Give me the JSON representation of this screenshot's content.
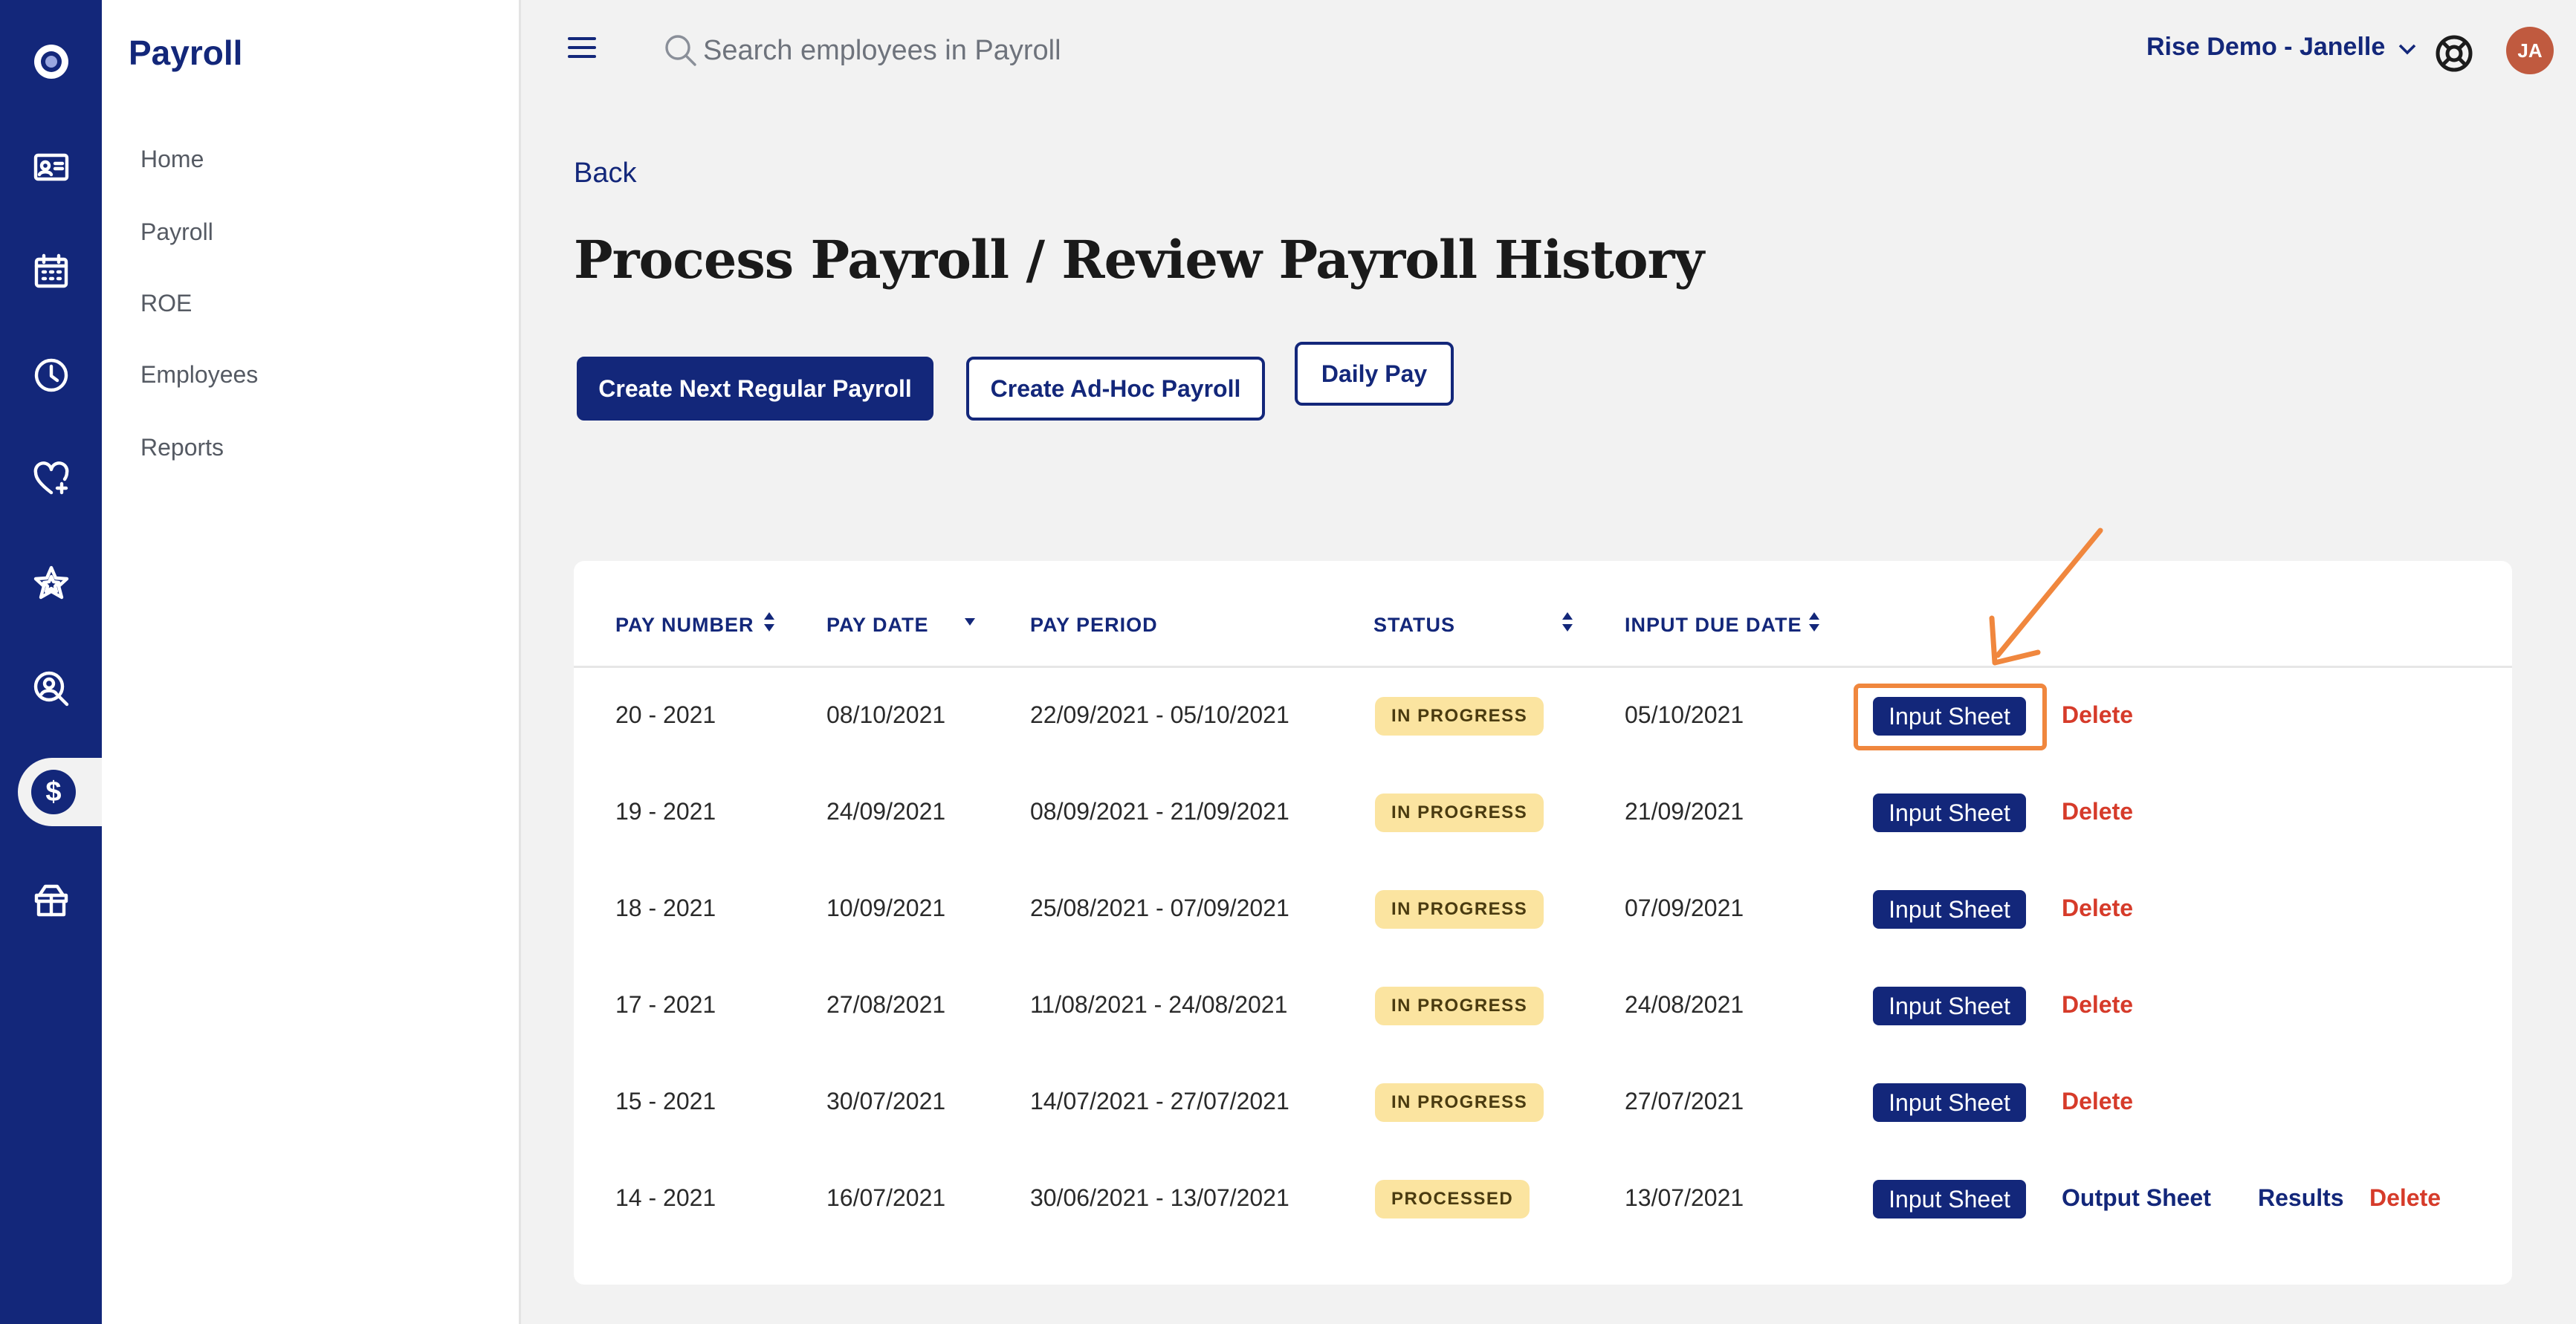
{
  "app": {
    "section_title": "Payroll",
    "colors": {
      "brand": "#13277a",
      "danger": "#d63b2a",
      "badge_bg": "#fbe4a0",
      "highlight": "#f0873e",
      "avatar_bg": "#c05a3f"
    }
  },
  "rail": {
    "icons": [
      "logo-icon",
      "id-card-icon",
      "calendar-icon",
      "clock-icon",
      "heart-plus-icon",
      "star-icon",
      "person-search-icon",
      "dollar-icon",
      "gift-box-icon"
    ],
    "active": "dollar-icon"
  },
  "sidebar": {
    "title": "Payroll",
    "items": [
      {
        "label": "Home"
      },
      {
        "label": "Payroll"
      },
      {
        "label": "ROE"
      },
      {
        "label": "Employees"
      },
      {
        "label": "Reports"
      }
    ]
  },
  "topbar": {
    "search_placeholder": "Search employees in Payroll",
    "account_label": "Rise Demo - Janelle",
    "avatar_initials": "JA"
  },
  "main": {
    "back_label": "Back",
    "title": "Process Payroll / Review Payroll History",
    "buttons": {
      "create_regular": "Create Next Regular Payroll",
      "create_adhoc": "Create Ad-Hoc Payroll",
      "daily_pay": "Daily Pay"
    }
  },
  "table": {
    "columns": {
      "pay_number": "PAY NUMBER",
      "pay_date": "PAY DATE",
      "pay_period": "PAY PERIOD",
      "status": "STATUS",
      "input_due_date": "INPUT DUE DATE"
    },
    "actions": {
      "input_sheet": "Input Sheet",
      "output_sheet": "Output Sheet",
      "results": "Results",
      "delete": "Delete"
    },
    "rows": [
      {
        "pay_number": "20 - 2021",
        "pay_date": "08/10/2021",
        "pay_period": "22/09/2021 - 05/10/2021",
        "status": "IN PROGRESS",
        "input_due_date": "05/10/2021"
      },
      {
        "pay_number": "19 - 2021",
        "pay_date": "24/09/2021",
        "pay_period": "08/09/2021 - 21/09/2021",
        "status": "IN PROGRESS",
        "input_due_date": "21/09/2021"
      },
      {
        "pay_number": "18 - 2021",
        "pay_date": "10/09/2021",
        "pay_period": "25/08/2021 - 07/09/2021",
        "status": "IN PROGRESS",
        "input_due_date": "07/09/2021"
      },
      {
        "pay_number": "17 - 2021",
        "pay_date": "27/08/2021",
        "pay_period": "11/08/2021 - 24/08/2021",
        "status": "IN PROGRESS",
        "input_due_date": "24/08/2021"
      },
      {
        "pay_number": "15 - 2021",
        "pay_date": "30/07/2021",
        "pay_period": "14/07/2021 - 27/07/2021",
        "status": "IN PROGRESS",
        "input_due_date": "27/07/2021"
      },
      {
        "pay_number": "14 - 2021",
        "pay_date": "16/07/2021",
        "pay_period": "30/06/2021 - 13/07/2021",
        "status": "PROCESSED",
        "input_due_date": "13/07/2021"
      }
    ]
  }
}
